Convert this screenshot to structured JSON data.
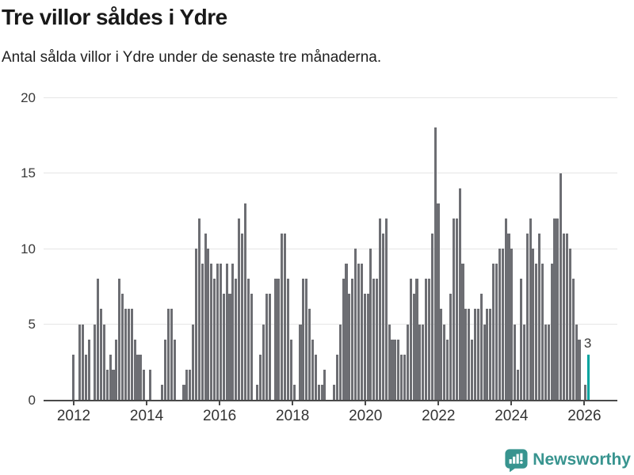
{
  "header": {
    "title": "Tre villor såldes i Ydre",
    "subtitle": "Antal sålda villor i Ydre under de senaste tre månaderna."
  },
  "colors": {
    "bar": "#6d6e73",
    "accent": "#00a39f",
    "gridline": "#e6e6e6",
    "axis": "#4a4a4a",
    "logo_teal": "#38948f"
  },
  "footer": {
    "logo_text": "Newsworthy"
  },
  "chart_data": {
    "type": "bar",
    "title": "Tre villor såldes i Ydre",
    "subtitle": "Antal sålda villor i Ydre under de senaste tre månaderna.",
    "xlabel": "",
    "ylabel": "",
    "ylim": [
      0,
      20
    ],
    "y_ticks": [
      0,
      5,
      10,
      15,
      20
    ],
    "x_tick_years": [
      "2012",
      "2014",
      "2016",
      "2018",
      "2020",
      "2022",
      "2024",
      "2026"
    ],
    "grid": "horizontal",
    "frequency": "monthly",
    "start_month": "2012-01",
    "end_month": "2026-01",
    "values": [
      3,
      0,
      5,
      5,
      3,
      4,
      0,
      5,
      8,
      6,
      5,
      2,
      3,
      2,
      4,
      8,
      7,
      6,
      6,
      6,
      4,
      3,
      3,
      2,
      0,
      2,
      0,
      0,
      0,
      1,
      4,
      6,
      6,
      4,
      0,
      0,
      1,
      2,
      2,
      5,
      10,
      12,
      9,
      11,
      10,
      9,
      8,
      9,
      9,
      7,
      9,
      7,
      9,
      8,
      12,
      11,
      13,
      8,
      7,
      0,
      1,
      3,
      5,
      7,
      7,
      0,
      8,
      8,
      11,
      11,
      8,
      4,
      1,
      0,
      5,
      8,
      8,
      6,
      4,
      3,
      1,
      1,
      2,
      0,
      0,
      1,
      3,
      5,
      8,
      9,
      7,
      8,
      10,
      9,
      9,
      7,
      7,
      10,
      8,
      8,
      12,
      11,
      12,
      5,
      4,
      4,
      4,
      3,
      3,
      5,
      8,
      7,
      8,
      5,
      5,
      8,
      8,
      11,
      18,
      13,
      6,
      5,
      4,
      7,
      12,
      12,
      14,
      9,
      6,
      6,
      4,
      6,
      6,
      7,
      5,
      6,
      6,
      9,
      9,
      10,
      10,
      12,
      11,
      10,
      5,
      2,
      8,
      5,
      11,
      12,
      10,
      9,
      11,
      9,
      5,
      5,
      9,
      12,
      12,
      15,
      11,
      11,
      10,
      8,
      5,
      4,
      0,
      1,
      3
    ],
    "highlight_last": true,
    "last_value_label": "3"
  }
}
